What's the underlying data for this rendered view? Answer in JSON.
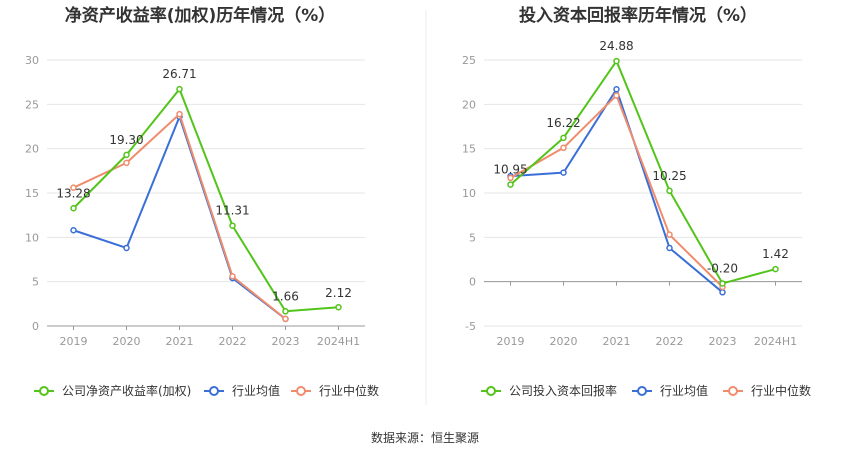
{
  "source_note": "数据来源：恒生聚源",
  "chart_data": [
    {
      "type": "line",
      "title": "净资产收益率(加权)历年情况（%）",
      "categories": [
        "2019",
        "2020",
        "2021",
        "2022",
        "2023",
        "2024H1"
      ],
      "ylim": [
        0,
        30
      ],
      "yticks": [
        0,
        5,
        10,
        15,
        20,
        25,
        30
      ],
      "ytick_labels": [
        "0",
        "5",
        "10",
        "15",
        "20",
        "25",
        "30"
      ],
      "grid": true,
      "legend_position": "bottom",
      "series": [
        {
          "name": "公司净资产收益率(加权)",
          "color": "#52c41a",
          "values": [
            13.28,
            19.3,
            26.71,
            11.31,
            1.66,
            2.12
          ],
          "labels": [
            "13.28",
            "19.30",
            "26.71",
            "11.31",
            "1.66",
            "2.12"
          ]
        },
        {
          "name": "行业均值",
          "color": "#3a6fd8",
          "values": [
            10.8,
            8.8,
            23.6,
            5.4,
            0.8,
            null
          ]
        },
        {
          "name": "行业中位数",
          "color": "#f08c6c",
          "values": [
            15.6,
            18.4,
            23.9,
            5.6,
            0.8,
            null
          ]
        }
      ]
    },
    {
      "type": "line",
      "title": "投入资本回报率历年情况（%）",
      "categories": [
        "2019",
        "2020",
        "2021",
        "2022",
        "2023",
        "2024H1"
      ],
      "ylim": [
        -5,
        25
      ],
      "yticks": [
        -5,
        0,
        5,
        10,
        15,
        20,
        25
      ],
      "ytick_labels": [
        "-5",
        "0",
        "5",
        "10",
        "15",
        "20",
        "25"
      ],
      "grid": true,
      "legend_position": "bottom",
      "series": [
        {
          "name": "公司投入资本回报率",
          "color": "#52c41a",
          "values": [
            10.95,
            16.22,
            24.88,
            10.25,
            -0.2,
            1.42
          ],
          "labels": [
            "10.95",
            "16.22",
            "24.88",
            "10.25",
            "-0.20",
            "1.42"
          ]
        },
        {
          "name": "行业均值",
          "color": "#3a6fd8",
          "values": [
            11.9,
            12.3,
            21.7,
            3.8,
            -1.2,
            null
          ]
        },
        {
          "name": "行业中位数",
          "color": "#f08c6c",
          "values": [
            11.7,
            15.1,
            21.0,
            5.3,
            -0.6,
            null
          ]
        }
      ]
    }
  ]
}
